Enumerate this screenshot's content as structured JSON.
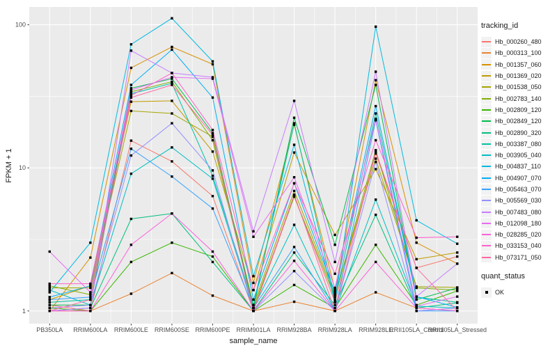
{
  "chart_data": {
    "type": "line",
    "title": "",
    "xlabel": "sample_name",
    "ylabel": "FPKM + 1",
    "y_scale": "log10",
    "y_ticks": [
      1,
      10,
      100
    ],
    "y_minor_ticks": [
      3.1623,
      31.623
    ],
    "ylim_log": [
      -0.09,
      2.13
    ],
    "grid": true,
    "legend_position": "right",
    "panel_bg": "#EBEBEB",
    "grid_color": "#FFFFFF",
    "point_color": "#000000",
    "axis_text_color": "#4D4D4D",
    "legend_key_bg": "#F2F2F2",
    "legend_title": "tracking_id",
    "point_legend": {
      "title": "quant_status",
      "items": [
        {
          "label": "OK"
        }
      ]
    },
    "categories": [
      "PB350LA",
      "RRIM600LA",
      "RRIM600LE",
      "RRIM600SE",
      "RRIM600PE",
      "RRIM901LA",
      "RRIM928BA",
      "RRIM928LA",
      "RRIM928LE",
      "RRII105LA_Control",
      "RRII105LA_Stressed"
    ],
    "series": [
      {
        "name": "Hb_000260_480",
        "color": "#F8766D",
        "values": [
          1.1,
          1.0,
          15.5,
          11.1,
          6.35,
          1.0,
          6.3,
          1.16,
          12.6,
          2.0,
          2.4
        ]
      },
      {
        "name": "Hb_000313_100",
        "color": "#EA8331",
        "values": [
          1.0,
          1.0,
          1.32,
          1.84,
          1.28,
          1.0,
          1.16,
          1.0,
          1.35,
          1.05,
          1.0
        ]
      },
      {
        "name": "Hb_001357_060",
        "color": "#D89000",
        "values": [
          1.0,
          2.36,
          50,
          70,
          53,
          1.57,
          20,
          1.4,
          41,
          3.0,
          2.14
        ]
      },
      {
        "name": "Hb_001369_020",
        "color": "#C09B00",
        "values": [
          1.2,
          1.5,
          29,
          29.4,
          13,
          1.4,
          12.8,
          3.4,
          9.8,
          2.3,
          2.56
        ]
      },
      {
        "name": "Hb_001538_050",
        "color": "#A3A500",
        "values": [
          1.45,
          1.45,
          25,
          24,
          16.5,
          1.1,
          6.9,
          1.3,
          11.6,
          1.48,
          1.46
        ]
      },
      {
        "name": "Hb_002783_140",
        "color": "#7CAE00",
        "values": [
          1.5,
          1.3,
          34,
          40,
          15.6,
          1.05,
          6.3,
          1.25,
          13.3,
          1.45,
          1.4
        ]
      },
      {
        "name": "Hb_002809_120",
        "color": "#39B600",
        "values": [
          1.05,
          1.0,
          2.2,
          3.0,
          2.4,
          1.0,
          1.52,
          1.05,
          2.9,
          1.1,
          1.38
        ]
      },
      {
        "name": "Hb_002849_120",
        "color": "#00BB4E",
        "values": [
          1.1,
          1.1,
          36,
          42,
          17.5,
          1.05,
          22.4,
          2.9,
          38,
          1.2,
          1.45
        ]
      },
      {
        "name": "Hb_002890_320",
        "color": "#00BF7D",
        "values": [
          1.0,
          1.05,
          4.4,
          4.8,
          2.2,
          1.0,
          2.56,
          1.1,
          4.7,
          1.05,
          1.14
        ]
      },
      {
        "name": "Hb_003387_080",
        "color": "#00C1A3",
        "values": [
          1.15,
          1.2,
          33,
          39,
          8.8,
          1.1,
          20.5,
          1.2,
          24,
          1.25,
          1.15
        ]
      },
      {
        "name": "Hb_003905_040",
        "color": "#00BFC4",
        "values": [
          1.4,
          1.1,
          9.1,
          13.9,
          8.4,
          1.05,
          4.0,
          1.0,
          6.0,
          1.08,
          1.05
        ]
      },
      {
        "name": "Hb_004837_110",
        "color": "#00BAE0",
        "values": [
          1.35,
          3.0,
          73,
          111,
          55.5,
          1.75,
          14.5,
          1.15,
          97,
          4.3,
          2.95
        ]
      },
      {
        "name": "Hb_004907_070",
        "color": "#00B0F6",
        "values": [
          1.25,
          1.5,
          38,
          67,
          31,
          1.2,
          7.8,
          1.35,
          27,
          1.26,
          1.06
        ]
      },
      {
        "name": "Hb_005463_070",
        "color": "#35A2FF",
        "values": [
          1.2,
          1.25,
          13.6,
          8.7,
          5.2,
          1.05,
          2.8,
          1.0,
          21.5,
          1.0,
          1.0
        ]
      },
      {
        "name": "Hb_005569_030",
        "color": "#9590FF",
        "values": [
          1.05,
          1.1,
          12.2,
          20.5,
          9.6,
          1.0,
          1.9,
          1.0,
          11.0,
          1.0,
          1.05
        ]
      },
      {
        "name": "Hb_007483_080",
        "color": "#C77CFF",
        "values": [
          1.0,
          1.05,
          66,
          46,
          43,
          3.6,
          29.4,
          2.2,
          47,
          1.26,
          2.14
        ]
      },
      {
        "name": "Hb_012098_180",
        "color": "#E76BF3",
        "values": [
          2.6,
          1.35,
          35,
          43,
          42,
          3.3,
          8.6,
          1.45,
          22,
          1.08,
          1.26
        ]
      },
      {
        "name": "Hb_028285_020",
        "color": "#FA62DB",
        "values": [
          1.0,
          1.0,
          2.9,
          4.8,
          2.6,
          1.0,
          2.24,
          1.0,
          2.2,
          1.05,
          1.0
        ]
      },
      {
        "name": "Hb_033153_040",
        "color": "#FF61CC",
        "values": [
          1.55,
          1.55,
          32,
          46,
          18.4,
          1.4,
          7.8,
          1.82,
          15.6,
          3.25,
          3.3
        ]
      },
      {
        "name": "Hb_073171_050",
        "color": "#FF67A4",
        "values": [
          1.0,
          1.2,
          31,
          38,
          17,
          1.0,
          6.5,
          1.0,
          13,
          2.0,
          1.0
        ]
      }
    ]
  }
}
